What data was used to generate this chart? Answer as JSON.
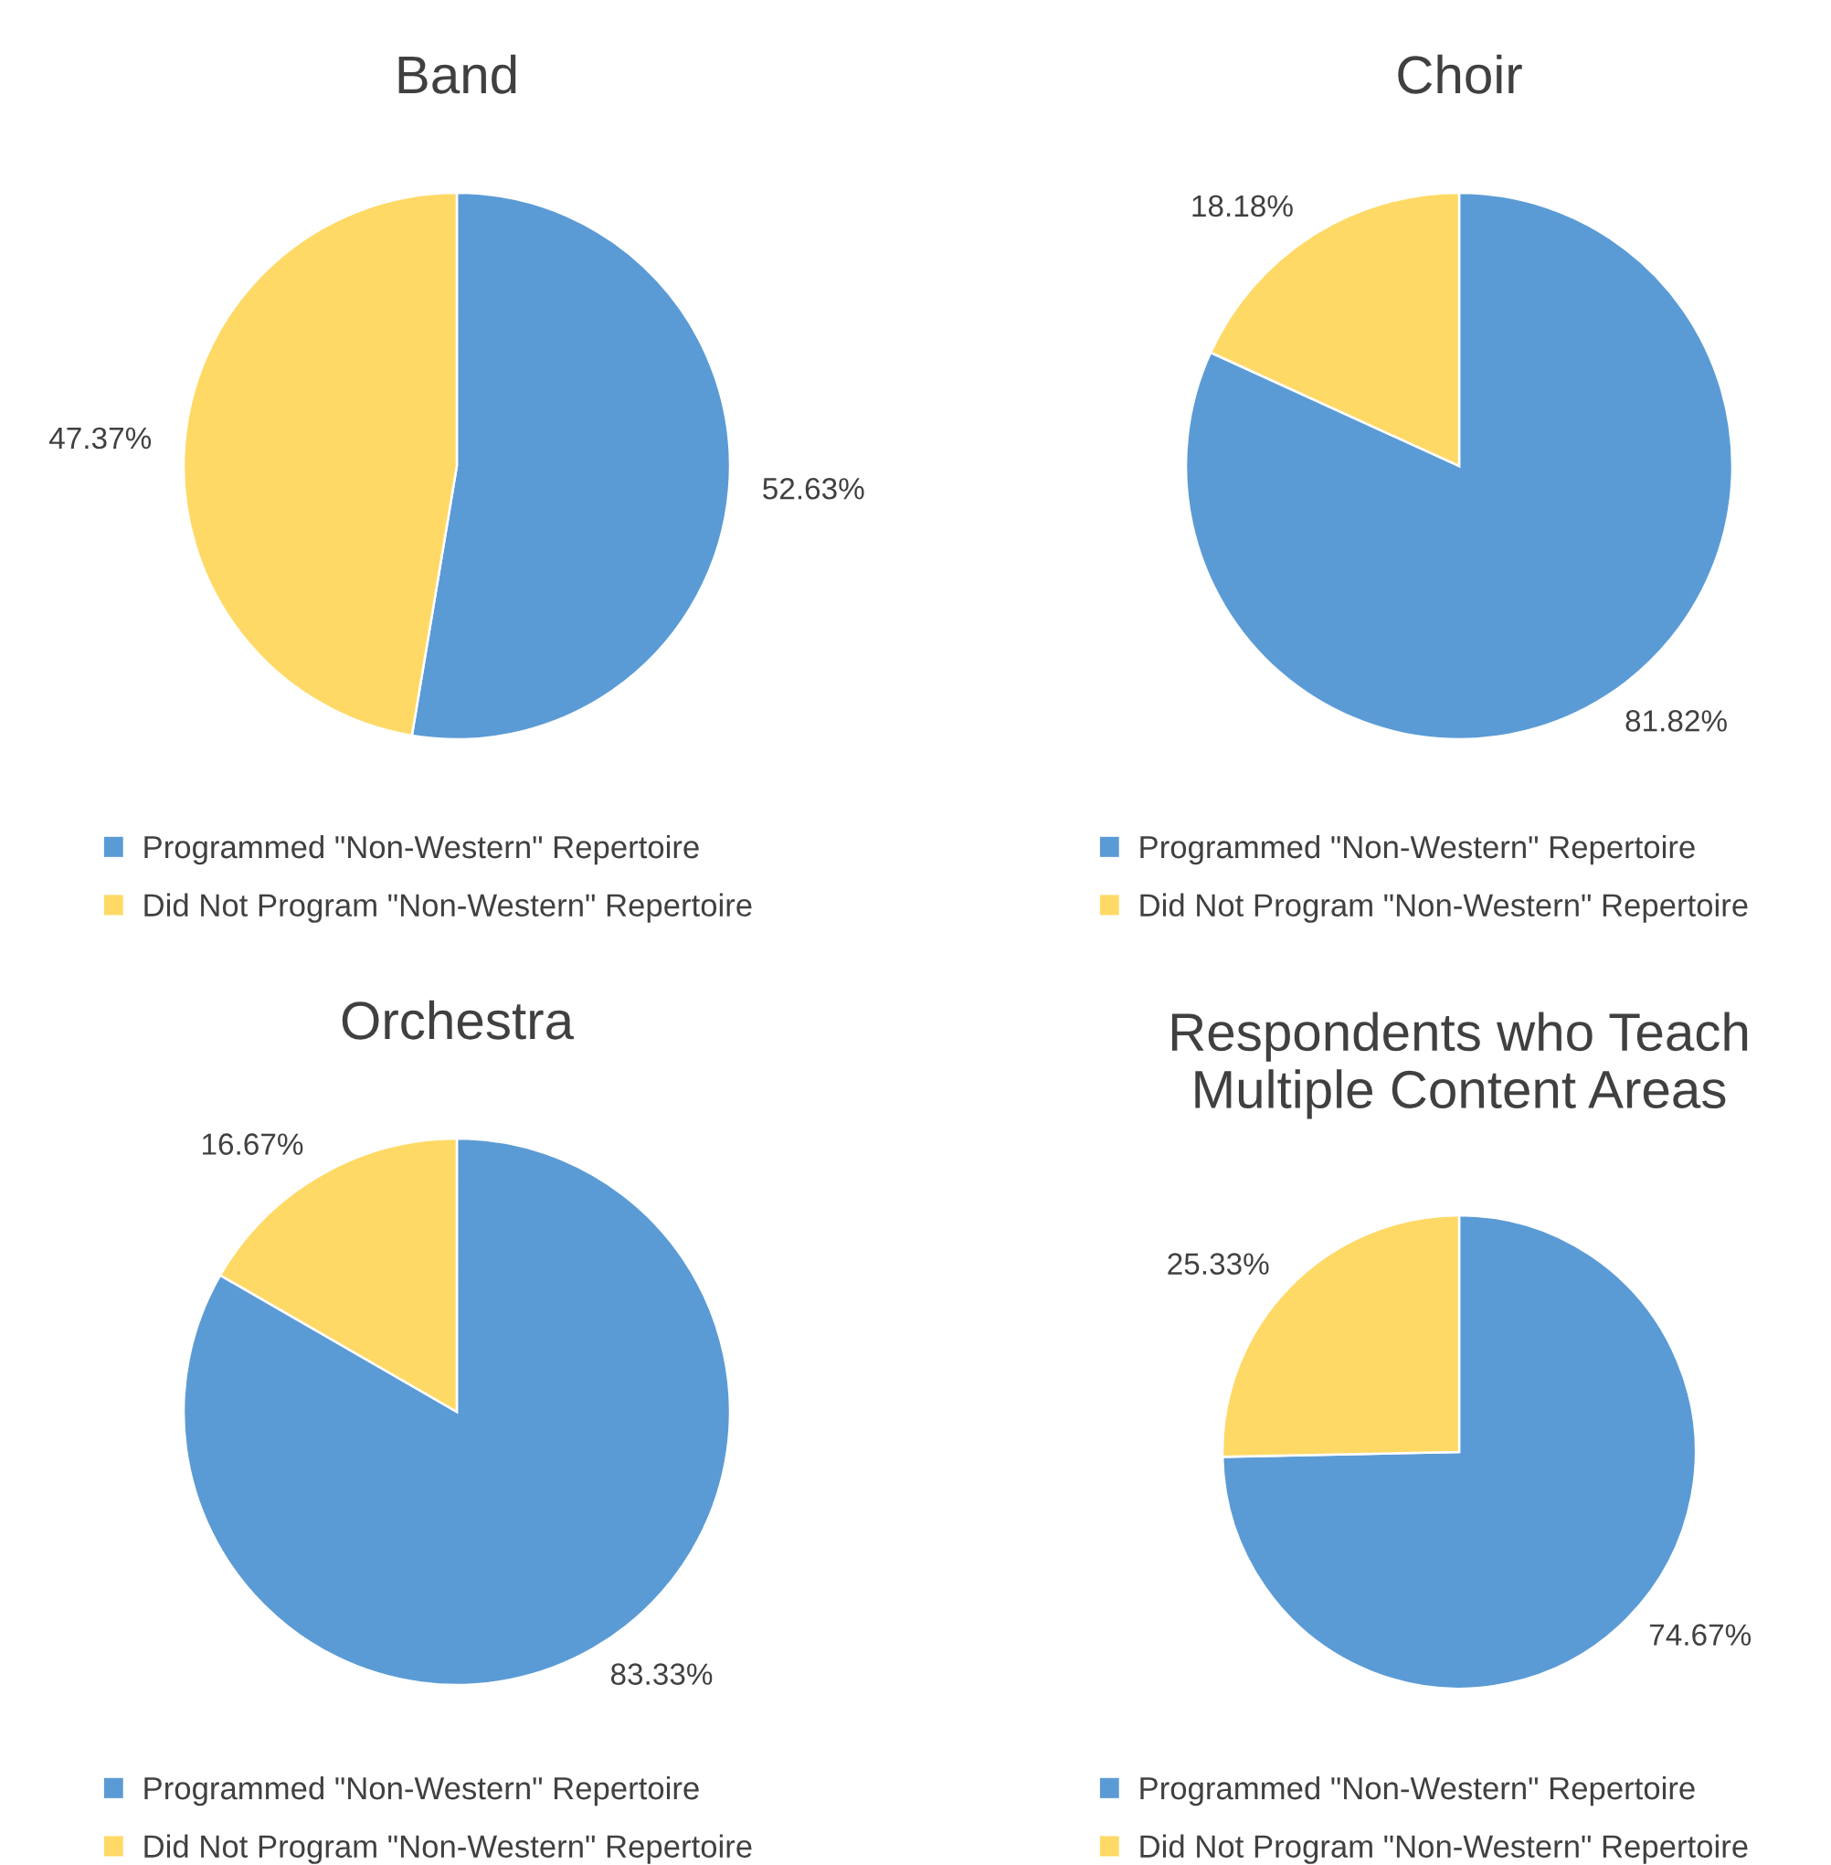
{
  "chart_data": [
    {
      "type": "pie",
      "title": "Band",
      "categories": [
        "Programmed \"Non-Western\" Repertoire",
        "Did Not Program \"Non-Western\" Repertoire"
      ],
      "values": [
        52.63,
        47.37
      ],
      "colors": [
        "#5b9bd5",
        "#ffd966"
      ],
      "value_labels": [
        "52.63%",
        "47.37%"
      ],
      "legend": "bottom"
    },
    {
      "type": "pie",
      "title": "Choir",
      "categories": [
        "Programmed \"Non-Western\" Repertoire",
        "Did Not Program \"Non-Western\" Repertoire"
      ],
      "values": [
        81.82,
        18.18
      ],
      "colors": [
        "#5b9bd5",
        "#ffd966"
      ],
      "value_labels": [
        "81.82%",
        "18.18%"
      ],
      "legend": "bottom"
    },
    {
      "type": "pie",
      "title": "Orchestra",
      "categories": [
        "Programmed \"Non-Western\" Repertoire",
        "Did Not Program \"Non-Western\" Repertoire"
      ],
      "values": [
        83.33,
        16.67
      ],
      "colors": [
        "#5b9bd5",
        "#ffd966"
      ],
      "value_labels": [
        "83.33%",
        "16.67%"
      ],
      "legend": "bottom"
    },
    {
      "type": "pie",
      "title": "Respondents who Teach Multiple Content Areas",
      "categories": [
        "Programmed \"Non-Western\" Repertoire",
        "Did Not Program \"Non-Western\" Repertoire"
      ],
      "values": [
        74.67,
        25.33
      ],
      "colors": [
        "#5b9bd5",
        "#ffd966"
      ],
      "value_labels": [
        "74.67%",
        "25.33%"
      ],
      "legend": "bottom"
    }
  ]
}
